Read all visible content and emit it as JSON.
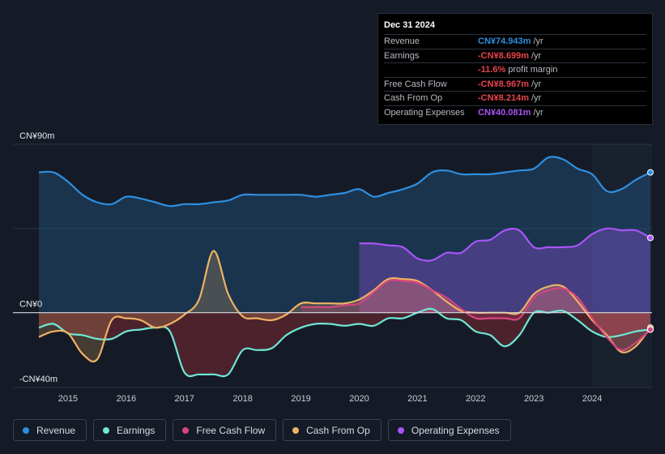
{
  "tooltip": {
    "date": "Dec 31 2024",
    "rows": [
      {
        "label": "Revenue",
        "value": "CN¥74.943m",
        "unit": "/yr",
        "color": "#2e8fe0"
      },
      {
        "label": "Earnings",
        "value": "-CN¥8.699m",
        "unit": "/yr",
        "color": "#e8444c"
      },
      {
        "label": "",
        "value": "-11.6%",
        "unit": "profit margin",
        "color": "#e8444c"
      },
      {
        "label": "Free Cash Flow",
        "value": "-CN¥8.967m",
        "unit": "/yr",
        "color": "#e8444c"
      },
      {
        "label": "Cash From Op",
        "value": "-CN¥8.214m",
        "unit": "/yr",
        "color": "#e8444c"
      },
      {
        "label": "Operating Expenses",
        "value": "CN¥40.081m",
        "unit": "/yr",
        "color": "#a855f7"
      }
    ]
  },
  "legend": [
    {
      "label": "Revenue",
      "color": "#2e8fe0"
    },
    {
      "label": "Earnings",
      "color": "#6ee7d5"
    },
    {
      "label": "Free Cash Flow",
      "color": "#d6457e"
    },
    {
      "label": "Cash From Op",
      "color": "#f0b264"
    },
    {
      "label": "Operating Expenses",
      "color": "#a855f7"
    }
  ],
  "chart_data": {
    "type": "area",
    "title": "",
    "y_unit": "CN¥m",
    "ylim": [
      -40,
      90
    ],
    "y_ticks": [
      {
        "value": 90,
        "label": "CN¥90m"
      },
      {
        "value": 0,
        "label": "CN¥0"
      },
      {
        "value": -40,
        "label": "-CN¥40m"
      }
    ],
    "xlim": [
      2014.35,
      2025.0
    ],
    "x_ticks": [
      "2015",
      "2016",
      "2017",
      "2018",
      "2019",
      "2020",
      "2021",
      "2022",
      "2023",
      "2024"
    ],
    "highlight_from": 2024.0,
    "series": [
      {
        "name": "Revenue",
        "color": "#2e8fe0",
        "x": [
          2014.5,
          2014.75,
          2015.0,
          2015.25,
          2015.5,
          2015.75,
          2016.0,
          2016.25,
          2016.5,
          2016.75,
          2017.0,
          2017.25,
          2017.5,
          2017.75,
          2018.0,
          2018.25,
          2018.5,
          2018.75,
          2019.0,
          2019.25,
          2019.5,
          2019.75,
          2020.0,
          2020.25,
          2020.5,
          2020.75,
          2021.0,
          2021.25,
          2021.5,
          2021.75,
          2022.0,
          2022.25,
          2022.5,
          2022.75,
          2023.0,
          2023.25,
          2023.5,
          2023.75,
          2024.0,
          2024.25,
          2024.5,
          2024.75,
          2025.0
        ],
        "values": [
          75,
          75,
          70,
          63,
          59,
          58,
          62,
          61,
          59,
          57,
          58,
          58,
          59,
          60,
          63,
          63,
          63,
          63,
          63,
          62,
          63,
          64,
          66,
          62,
          64,
          66,
          69,
          75,
          76,
          74,
          74,
          74,
          75,
          76,
          77,
          83,
          82,
          77,
          74,
          65,
          66,
          71,
          75
        ]
      },
      {
        "name": "Earnings",
        "color": "#6ee7d5",
        "x": [
          2014.5,
          2014.75,
          2015.0,
          2015.25,
          2015.5,
          2015.75,
          2016.0,
          2016.25,
          2016.5,
          2016.75,
          2017.0,
          2017.25,
          2017.5,
          2017.75,
          2018.0,
          2018.25,
          2018.5,
          2018.75,
          2019.0,
          2019.25,
          2019.5,
          2019.75,
          2020.0,
          2020.25,
          2020.5,
          2020.75,
          2021.0,
          2021.25,
          2021.5,
          2021.75,
          2022.0,
          2022.25,
          2022.5,
          2022.75,
          2023.0,
          2023.25,
          2023.5,
          2023.75,
          2024.0,
          2024.25,
          2024.5,
          2024.75,
          2025.0
        ],
        "values": [
          -8,
          -6,
          -11,
          -12,
          -14,
          -14,
          -10,
          -9,
          -8,
          -10,
          -32,
          -33,
          -33,
          -33,
          -20,
          -20,
          -19,
          -12,
          -8,
          -6,
          -6,
          -7,
          -6,
          -7,
          -3,
          -3,
          0,
          2,
          -3,
          -4,
          -10,
          -12,
          -18,
          -12,
          0,
          0,
          1,
          -4,
          -10,
          -13,
          -12,
          -10,
          -9
        ]
      },
      {
        "name": "Free Cash Flow",
        "color": "#d6457e",
        "x": [
          2019.0,
          2019.25,
          2019.5,
          2019.75,
          2020.0,
          2020.25,
          2020.5,
          2020.75,
          2021.0,
          2021.25,
          2021.5,
          2021.75,
          2022.0,
          2022.25,
          2022.5,
          2022.75,
          2023.0,
          2023.25,
          2023.5,
          2023.75,
          2024.0,
          2024.25,
          2024.5,
          2024.75,
          2025.0
        ],
        "values": [
          3,
          3,
          3,
          4,
          5,
          11,
          17,
          17,
          16,
          12,
          8,
          2,
          -3,
          -3,
          -3,
          -3,
          8,
          12,
          13,
          8,
          -3,
          -13,
          -20,
          -16,
          -9
        ]
      },
      {
        "name": "Cash From Op",
        "color": "#f0b264",
        "x": [
          2014.5,
          2014.75,
          2015.0,
          2015.25,
          2015.5,
          2015.75,
          2016.0,
          2016.25,
          2016.5,
          2016.75,
          2017.0,
          2017.25,
          2017.5,
          2017.75,
          2018.0,
          2018.25,
          2018.5,
          2018.75,
          2019.0,
          2019.25,
          2019.5,
          2019.75,
          2020.0,
          2020.25,
          2020.5,
          2020.75,
          2021.0,
          2021.25,
          2021.5,
          2021.75,
          2022.0,
          2022.25,
          2022.5,
          2022.75,
          2023.0,
          2023.25,
          2023.5,
          2023.75,
          2024.0,
          2024.25,
          2024.5,
          2024.75,
          2025.0
        ],
        "values": [
          -13,
          -10,
          -11,
          -22,
          -25,
          -4,
          -3,
          -4,
          -8,
          -6,
          -1,
          7,
          33,
          10,
          -2,
          -3,
          -4,
          -1,
          5,
          5,
          5,
          5,
          7,
          12,
          18,
          18,
          17,
          12,
          6,
          1,
          0,
          0,
          0,
          0,
          10,
          14,
          14,
          6,
          -4,
          -12,
          -21,
          -18,
          -8
        ]
      },
      {
        "name": "Operating Expenses",
        "color": "#a855f7",
        "x": [
          2020.0,
          2020.25,
          2020.5,
          2020.75,
          2021.0,
          2021.25,
          2021.5,
          2021.75,
          2022.0,
          2022.25,
          2022.5,
          2022.75,
          2023.0,
          2023.25,
          2023.5,
          2023.75,
          2024.0,
          2024.25,
          2024.5,
          2024.75,
          2025.0
        ],
        "values": [
          37,
          37,
          36,
          35,
          29,
          28,
          32,
          32,
          38,
          39,
          44,
          44,
          35,
          35,
          35,
          36,
          42,
          45,
          44,
          44,
          40
        ]
      }
    ]
  }
}
